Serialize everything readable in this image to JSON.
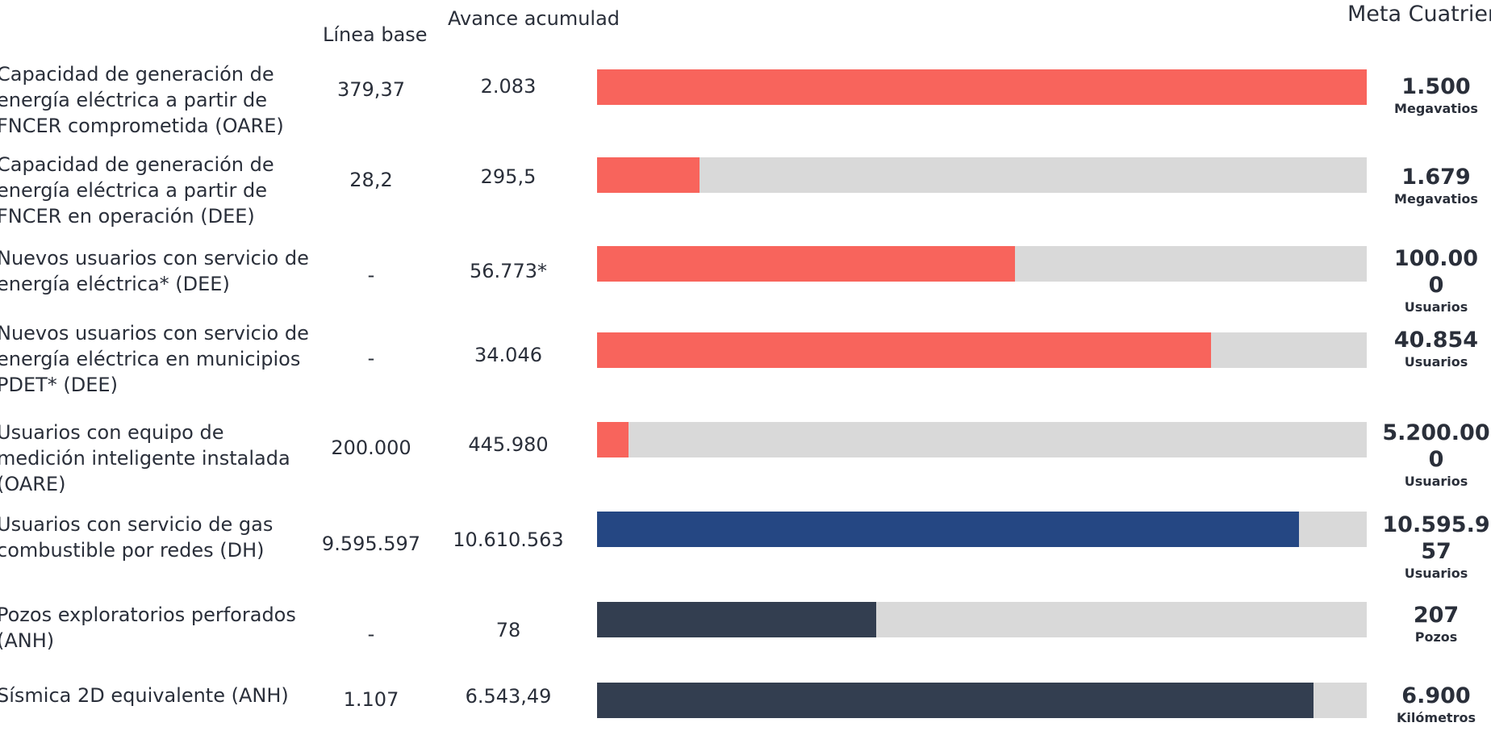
{
  "headers": {
    "linea_base": "Línea base",
    "avance": "Avance acumulad",
    "meta": "Meta Cuatrienio"
  },
  "colors": {
    "coral": "#f8645c",
    "blue": "#254783",
    "navy": "#333e50",
    "track": "#d9d9d9"
  },
  "chart_data": {
    "type": "bar",
    "orientation": "horizontal",
    "columns": [
      "Línea base",
      "Avance acumulad",
      "Meta Cuatrienio"
    ],
    "rows": [
      {
        "label": "Capacidad de generación de energía eléctrica a partir de FNCER comprometida (OARE)",
        "linea_base": "379,37",
        "avance": "2.083",
        "meta": "1.500",
        "unit": "Megavatios",
        "progress_pct": 100,
        "color": "#f8645c"
      },
      {
        "label": "Capacidad de generación de energía eléctrica a partir de FNCER en operación (DEE)",
        "linea_base": "28,2",
        "avance": "295,5",
        "meta": "1.679",
        "unit": "Megavatios",
        "progress_pct": 13.3,
        "color": "#f8645c"
      },
      {
        "label": "Nuevos usuarios con servicio de energía eléctrica* (DEE)",
        "linea_base": "-",
        "avance": "56.773*",
        "meta": "100.000",
        "unit": "Usuarios",
        "progress_pct": 54.3,
        "color": "#f8645c"
      },
      {
        "label": "Nuevos usuarios con servicio de energía eléctrica en municipios PDET* (DEE)",
        "linea_base": "-",
        "avance": "34.046",
        "meta": "40.854",
        "unit": "Usuarios",
        "progress_pct": 79.8,
        "color": "#f8645c"
      },
      {
        "label": "Usuarios con equipo de medición inteligente instalada (OARE)",
        "linea_base": "200.000",
        "avance": "445.980",
        "meta": "5.200.000",
        "unit": "Usuarios",
        "progress_pct": 4.1,
        "color": "#f8645c"
      },
      {
        "label": "Usuarios con servicio de gas combustible por redes (DH)",
        "linea_base": "9.595.597",
        "avance": "10.610.563",
        "meta": "10.595.957",
        "unit": "Usuarios",
        "progress_pct": 91.2,
        "color": "#254783"
      },
      {
        "label": "Pozos exploratorios perforados (ANH)",
        "linea_base": "-",
        "avance": "78",
        "meta": "207",
        "unit": "Pozos",
        "progress_pct": 36.3,
        "color": "#333e50"
      },
      {
        "label": "Sísmica 2D equivalente (ANH)",
        "linea_base": "1.107",
        "avance": "6.543,49",
        "meta": "6.900",
        "unit": "Kilómetros",
        "progress_pct": 93.1,
        "color": "#333e50"
      }
    ]
  }
}
